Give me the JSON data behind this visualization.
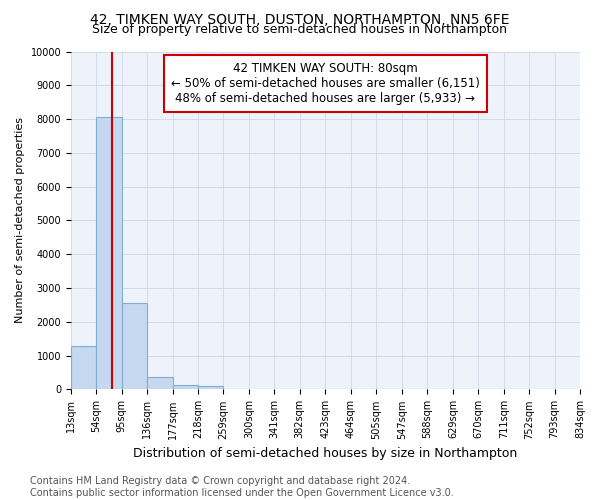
{
  "title": "42, TIMKEN WAY SOUTH, DUSTON, NORTHAMPTON, NN5 6FE",
  "subtitle": "Size of property relative to semi-detached houses in Northampton",
  "xlabel": "Distribution of semi-detached houses by size in Northampton",
  "ylabel": "Number of semi-detached properties",
  "bar_values": [
    1300,
    8050,
    2550,
    380,
    140,
    100,
    0,
    0,
    0,
    0,
    0,
    0,
    0,
    0,
    0,
    0,
    0,
    0,
    0,
    0
  ],
  "bin_edges": [
    13,
    54,
    95,
    136,
    177,
    218,
    259,
    300,
    341,
    382,
    423,
    464,
    505,
    547,
    588,
    629,
    670,
    711,
    752,
    793,
    834
  ],
  "tick_labels": [
    "13sqm",
    "54sqm",
    "95sqm",
    "136sqm",
    "177sqm",
    "218sqm",
    "259sqm",
    "300sqm",
    "341sqm",
    "382sqm",
    "423sqm",
    "464sqm",
    "505sqm",
    "547sqm",
    "588sqm",
    "629sqm",
    "670sqm",
    "711sqm",
    "752sqm",
    "793sqm",
    "834sqm"
  ],
  "bar_color": "#c5d8f0",
  "bar_edgecolor": "#7bafd4",
  "vline_x": 80,
  "vline_color": "#cc0000",
  "annotation_title": "42 TIMKEN WAY SOUTH: 80sqm",
  "annotation_line1": "← 50% of semi-detached houses are smaller (6,151)",
  "annotation_line2": "48% of semi-detached houses are larger (5,933) →",
  "annotation_box_color": "#cc0000",
  "ylim": [
    0,
    10000
  ],
  "yticks": [
    0,
    1000,
    2000,
    3000,
    4000,
    5000,
    6000,
    7000,
    8000,
    9000,
    10000
  ],
  "grid_color": "#d0d8e8",
  "bg_color": "#eef2fa",
  "footer": "Contains HM Land Registry data © Crown copyright and database right 2024.\nContains public sector information licensed under the Open Government Licence v3.0.",
  "title_fontsize": 10,
  "subtitle_fontsize": 9,
  "ylabel_fontsize": 8,
  "xlabel_fontsize": 9,
  "tick_fontsize": 7,
  "annotation_fontsize": 8.5,
  "footer_fontsize": 7
}
